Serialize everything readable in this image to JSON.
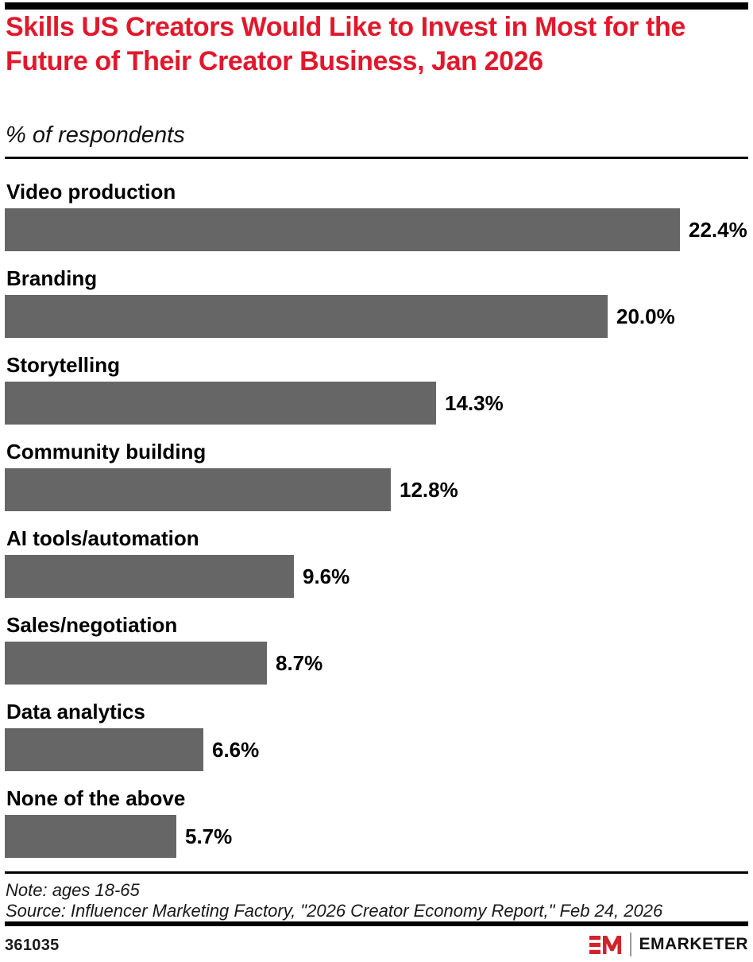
{
  "colors": {
    "accent_red": "#e1182c",
    "logo_red": "#d2232a",
    "bar_gray": "#666667",
    "rule_black": "#000000"
  },
  "header": {
    "title": "Skills US Creators Would Like to Invest in Most for the Future of Their Creator Business, Jan 2026",
    "subtitle": "% of respondents"
  },
  "chart_data": {
    "type": "bar",
    "orientation": "horizontal",
    "title": "Skills US Creators Would Like to Invest in Most for the Future of Their Creator Business, Jan 2026",
    "unit_label": "% of respondents",
    "categories": [
      "Video production",
      "Branding",
      "Storytelling",
      "Community building",
      "AI tools/automation",
      "Sales/negotiation",
      "Data analytics",
      "None of the above"
    ],
    "values": [
      22.4,
      20.0,
      14.3,
      12.8,
      9.6,
      8.7,
      6.6,
      5.7
    ],
    "value_labels": [
      "22.4%",
      "20.0%",
      "14.3%",
      "12.8%",
      "9.6%",
      "8.7%",
      "6.6%",
      "5.7%"
    ],
    "xlim": [
      0,
      22.4
    ],
    "grid": false,
    "legend": false,
    "bar_color": "#666667"
  },
  "footer": {
    "note": "Note: ages 18-65",
    "source": "Source: Influencer Marketing Factory, \"2026 Creator Economy Report,\" Feb 24, 2026",
    "chart_id": "361035",
    "brand": "EMARKETER"
  }
}
